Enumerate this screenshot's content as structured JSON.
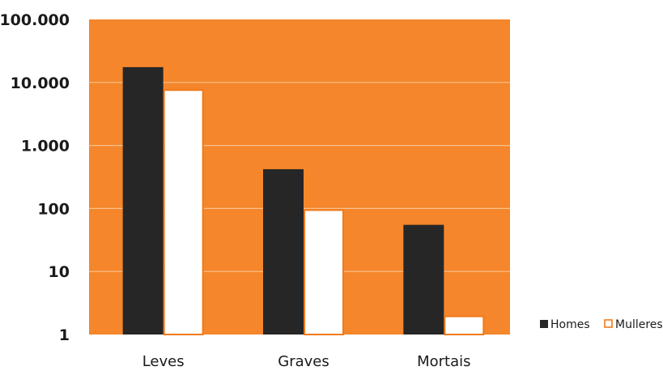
{
  "chart_data": {
    "type": "bar",
    "yscale": "log",
    "ylim": [
      1,
      100000
    ],
    "categories": [
      "Leves",
      "Graves",
      "Mortais"
    ],
    "series": [
      {
        "name": "Homes",
        "values": [
          17500,
          420,
          55
        ]
      },
      {
        "name": "Mulleres",
        "values": [
          7800,
          97,
          2
        ]
      }
    ],
    "y_tick_values": [
      1,
      10,
      100,
      1000,
      10000,
      100000
    ],
    "y_tick_labels": [
      "1",
      "10",
      "100",
      "1.000",
      "10.000",
      "100.000"
    ],
    "grid": true,
    "legend_position": "right",
    "colors": {
      "plot_background": "#F5862B",
      "gridline": "#F9C08E",
      "Homes": "#262626",
      "Mulleres_fill": "#FFFFFF",
      "Mulleres_border": "#F07A1A"
    }
  }
}
